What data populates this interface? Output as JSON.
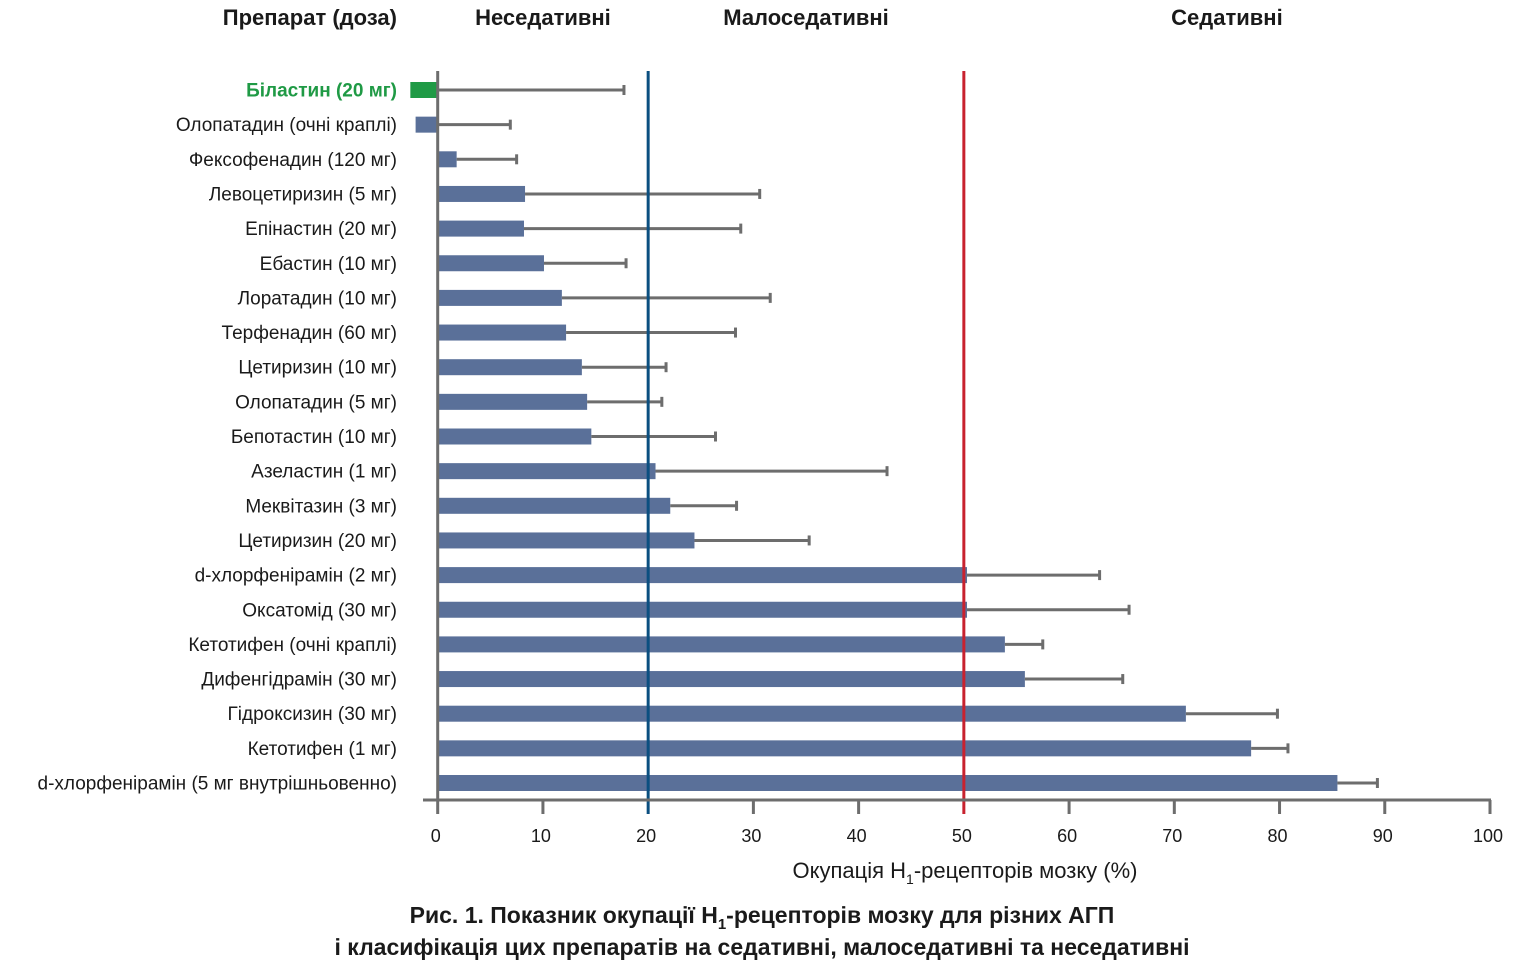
{
  "chart_data": {
    "type": "bar",
    "orientation": "horizontal",
    "title": "Рис. 1. Показник окупації H1-рецепторів мозку для різних АГП і класифікація цих препаратів на седативні, малоседативні та неседативні",
    "caption_lines": [
      {
        "pre": "Рис. 1. Показник окупації H",
        "sub": "1",
        "post": "-рецепторів мозку для різних АГП"
      },
      {
        "pre": "і класифікація цих препаратів на седативні, малоседативні та неседативні",
        "sub": "",
        "post": ""
      }
    ],
    "column_header": "Препарат (доза)",
    "zone_headers": [
      {
        "label": "Неседативні",
        "range": [
          0,
          20
        ]
      },
      {
        "label": "Малоседативні",
        "range": [
          20,
          50
        ]
      },
      {
        "label": "Седативні",
        "range": [
          50,
          100
        ]
      }
    ],
    "xlabel": {
      "pre": "Окупація H",
      "sub": "1",
      "post": "-рецепторів мозку (%)"
    },
    "ylabel": "",
    "xlim": [
      0,
      100
    ],
    "xticks": [
      0,
      10,
      20,
      30,
      40,
      50,
      60,
      70,
      80,
      90,
      100
    ],
    "thresholds": [
      {
        "value": 20,
        "color": "#0b4f80"
      },
      {
        "value": 50,
        "color": "#c8222f"
      }
    ],
    "colors": {
      "bar": "#5a7099",
      "highlight": "#1f9a45",
      "error": "#6d6d6d",
      "axis": "#6d6d6d"
    },
    "grid": false,
    "legend": "none",
    "categories": [
      "Біластин (20 мг)",
      "Олопатадин (очні краплі)",
      "Фексофенадин (120 мг)",
      "Левоцетиризин (5 мг)",
      "Епінастин (20 мг)",
      "Ебастин (10 мг)",
      "Лоратадин (10 мг)",
      "Терфенадин (60 мг)",
      "Цетиризин (10 мг)",
      "Олопатадин (5 мг)",
      "Бепотастин (10 мг)",
      "Азеластин (1 мг)",
      "Меквітазин (3 мг)",
      "Цетиризин (20 мг)",
      "d-хлорфенірамін (2 мг)",
      "Оксатомід (30 мг)",
      "Кетотифен (очні краплі)",
      "Дифенгідрамін (30 мг)",
      "Гідроксизин (30 мг)",
      "Кетотифен (1 мг)",
      "d-хлорфенірамін (5 мг внутрішньовенно)"
    ],
    "highlight_index": 0,
    "values": [
      -2.6,
      -2.1,
      1.8,
      8.3,
      8.2,
      10.1,
      11.8,
      12.2,
      13.7,
      14.2,
      14.6,
      20.7,
      22.1,
      24.4,
      50.3,
      50.3,
      53.9,
      55.8,
      71.1,
      77.3,
      85.5
    ],
    "error_upper": [
      17.7,
      6.9,
      7.5,
      30.6,
      28.8,
      17.9,
      31.6,
      28.3,
      21.7,
      21.3,
      26.4,
      42.7,
      28.4,
      35.3,
      62.9,
      65.7,
      57.5,
      65.1,
      79.8,
      80.8,
      89.3
    ]
  }
}
